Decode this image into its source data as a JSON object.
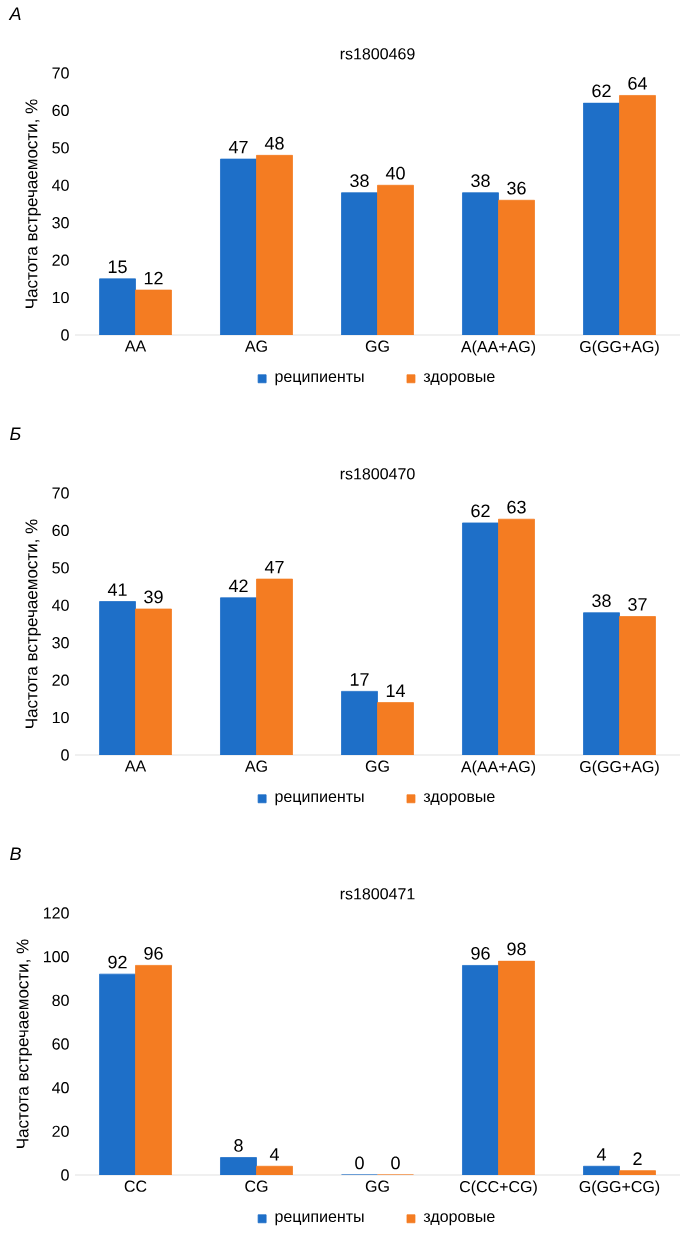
{
  "chart_data": [
    {
      "type": "bar",
      "title": "rs1800469",
      "ylabel": "Частота встречаемости, %",
      "annotations": [
        "А"
      ],
      "categories": [
        "AA",
        "AG",
        "GG",
        "A(AA+AG)",
        "G(GG+AG)"
      ],
      "series": [
        {
          "name": "реципиенты",
          "color": "#1e6fc8",
          "values": [
            15,
            47,
            38,
            38,
            62
          ]
        },
        {
          "name": "здоровые",
          "color": "#f47c22",
          "values": [
            12,
            48,
            40,
            36,
            64
          ]
        }
      ],
      "ylim": [
        0,
        70
      ],
      "yticks": [
        0,
        10,
        20,
        30,
        40,
        50,
        60,
        70
      ],
      "data_labels": true,
      "legend": "bottom",
      "grid": false
    },
    {
      "type": "bar",
      "title": "rs1800470",
      "ylabel": "Частота встречаемости, %",
      "annotations": [
        "Б"
      ],
      "categories": [
        "AA",
        "AG",
        "GG",
        "A(AA+AG)",
        "G(GG+AG)"
      ],
      "series": [
        {
          "name": "реципиенты",
          "color": "#1e6fc8",
          "values": [
            41,
            42,
            17,
            62,
            38
          ]
        },
        {
          "name": "здоровые",
          "color": "#f47c22",
          "values": [
            39,
            47,
            14,
            63,
            37
          ]
        }
      ],
      "ylim": [
        0,
        70
      ],
      "yticks": [
        0,
        10,
        20,
        30,
        40,
        50,
        60,
        70
      ],
      "data_labels": true,
      "legend": "bottom",
      "grid": false
    },
    {
      "type": "bar",
      "title": "rs1800471",
      "ylabel": "Частота встречаемости, %",
      "annotations": [
        "В"
      ],
      "categories": [
        "CC",
        "CG",
        "GG",
        "C(CC+CG)",
        "G(GG+CG)"
      ],
      "series": [
        {
          "name": "реципиенты",
          "color": "#1e6fc8",
          "values": [
            92,
            8,
            0,
            96,
            4
          ]
        },
        {
          "name": "здоровые",
          "color": "#f47c22",
          "values": [
            96,
            4,
            0,
            98,
            2
          ]
        }
      ],
      "ylim": [
        0,
        120
      ],
      "yticks": [
        0,
        20,
        40,
        60,
        80,
        100,
        120
      ],
      "data_labels": true,
      "legend": "bottom",
      "grid": false
    }
  ]
}
